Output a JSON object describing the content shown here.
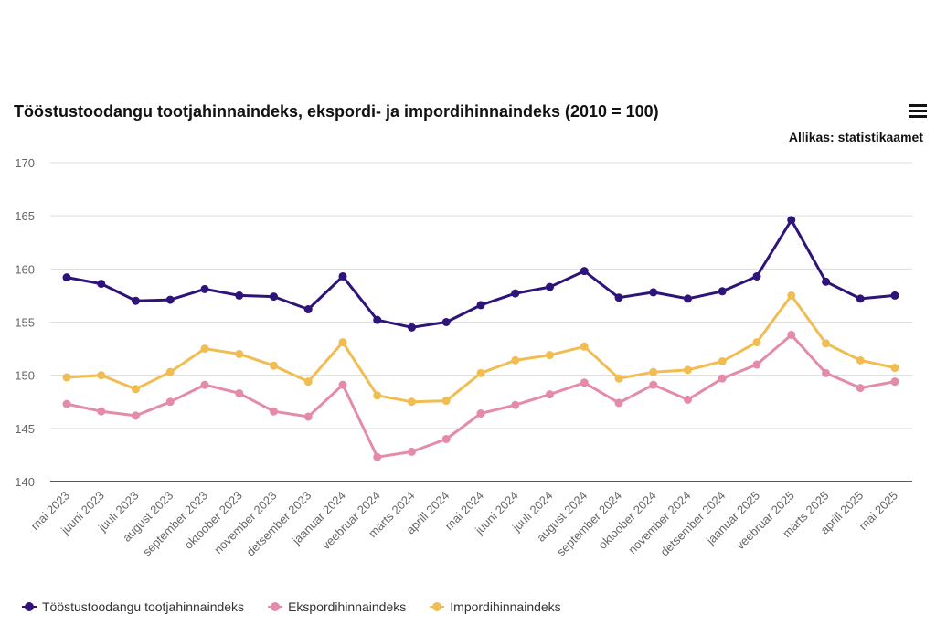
{
  "header": {
    "title": "Tööstustoodangu tootjahinnaindeks, ekspordi- ja impordihinnaindeks (2010 = 100)",
    "source": "Allikas: statistikaamet",
    "menu_icon": "hamburger-menu-icon"
  },
  "chart_data": {
    "type": "line",
    "title": "Tööstustoodangu tootjahinnaindeks, ekspordi- ja impordihinnaindeks (2010 = 100)",
    "xlabel": "",
    "ylabel": "",
    "ylim": [
      140,
      170
    ],
    "yticks": [
      140,
      145,
      150,
      155,
      160,
      165,
      170
    ],
    "grid": true,
    "legend_position": "bottom-left",
    "categories": [
      "mai 2023",
      "juuni 2023",
      "juuli 2023",
      "august 2023",
      "september 2023",
      "oktoober 2023",
      "november 2023",
      "detsember 2023",
      "jaanuar 2024",
      "veebruar 2024",
      "märts 2024",
      "aprill 2024",
      "mai 2024",
      "juuni 2024",
      "juuli 2024",
      "august 2024",
      "september 2024",
      "oktoober 2024",
      "november 2024",
      "detsember 2024",
      "jaanuar 2025",
      "veebruar 2025",
      "märts 2025",
      "aprill 2025",
      "mai 2025"
    ],
    "series": [
      {
        "name": "Tööstustoodangu tootjahinnaindeks",
        "color": "#2e1378",
        "values": [
          159.2,
          158.6,
          157.0,
          157.1,
          158.1,
          157.5,
          157.4,
          156.2,
          159.3,
          155.2,
          154.5,
          155.0,
          156.6,
          157.7,
          158.3,
          159.8,
          157.3,
          157.8,
          157.2,
          157.9,
          159.3,
          164.6,
          158.8,
          157.2,
          157.5
        ]
      },
      {
        "name": "Ekspordihinnaindeks",
        "color": "#e48aaa",
        "values": [
          147.3,
          146.6,
          146.2,
          147.5,
          149.1,
          148.3,
          146.6,
          146.1,
          149.1,
          142.3,
          142.8,
          144.0,
          146.4,
          147.2,
          148.2,
          149.3,
          147.4,
          149.1,
          147.7,
          149.7,
          151.0,
          153.8,
          150.2,
          148.8,
          149.4
        ]
      },
      {
        "name": "Impordihinnaindeks",
        "color": "#f1bd52",
        "values": [
          149.8,
          150.0,
          148.7,
          150.3,
          152.5,
          152.0,
          150.9,
          149.4,
          153.1,
          148.1,
          147.5,
          147.6,
          150.2,
          151.4,
          151.9,
          152.7,
          149.7,
          150.3,
          150.5,
          151.3,
          153.1,
          157.5,
          153.0,
          151.4,
          150.7
        ]
      }
    ]
  }
}
